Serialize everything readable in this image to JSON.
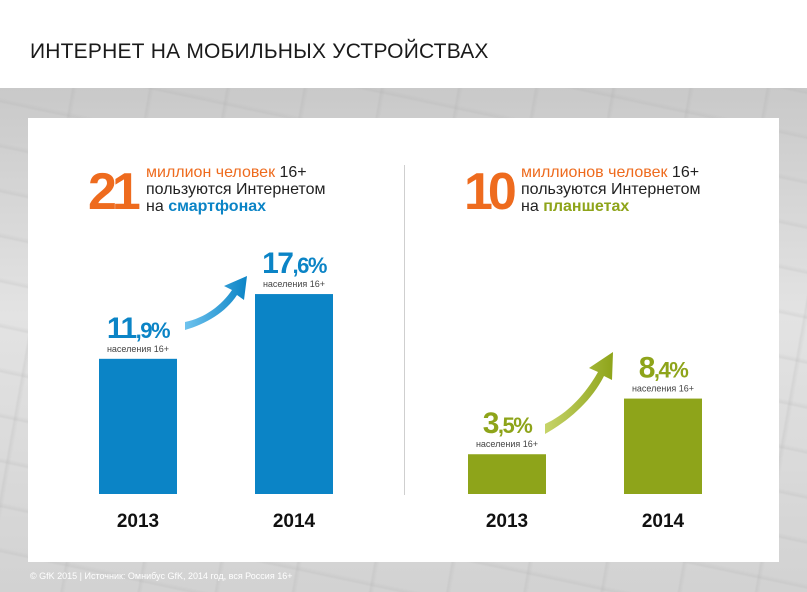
{
  "title": "ИНТЕРНЕТ НА МОБИЛЬНЫХ УСТРОЙСТВАХ",
  "colors": {
    "blue": "#0b84c6",
    "green": "#8ea41a",
    "orange": "#ee6b1e"
  },
  "smartphones": {
    "big_number": "21",
    "line1": "миллион человек",
    "line1_suffix": " 16+",
    "line2": "пользуются Интернетом",
    "line3_prefix": "на ",
    "line3_keyword": "смартфонах"
  },
  "tablets": {
    "big_number": "10",
    "line1": "миллионов человек",
    "line1_suffix": " 16+",
    "line2": "пользуются Интернетом",
    "line3_prefix": "на ",
    "line3_keyword": "планшетах"
  },
  "chart_data": [
    {
      "type": "bar",
      "categories": [
        "2013",
        "2014"
      ],
      "values": [
        11.9,
        17.6
      ],
      "value_labels": [
        {
          "whole": "11",
          "frac": ",9%"
        },
        {
          "whole": "17",
          "frac": ",6%"
        }
      ],
      "sublabel": "населения 16+",
      "ylim": [
        0,
        20
      ],
      "color": "#0b84c6"
    },
    {
      "type": "bar",
      "categories": [
        "2013",
        "2014"
      ],
      "values": [
        3.5,
        8.4
      ],
      "value_labels": [
        {
          "whole": "3",
          "frac": ",5%"
        },
        {
          "whole": "8",
          "frac": ",4%"
        }
      ],
      "sublabel": "населения 16+",
      "ylim": [
        0,
        20
      ],
      "color": "#8ea41a"
    }
  ],
  "source": "© GfK 2015 | Источник: Омнибус GfK, 2014 год, вся Россия 16+"
}
